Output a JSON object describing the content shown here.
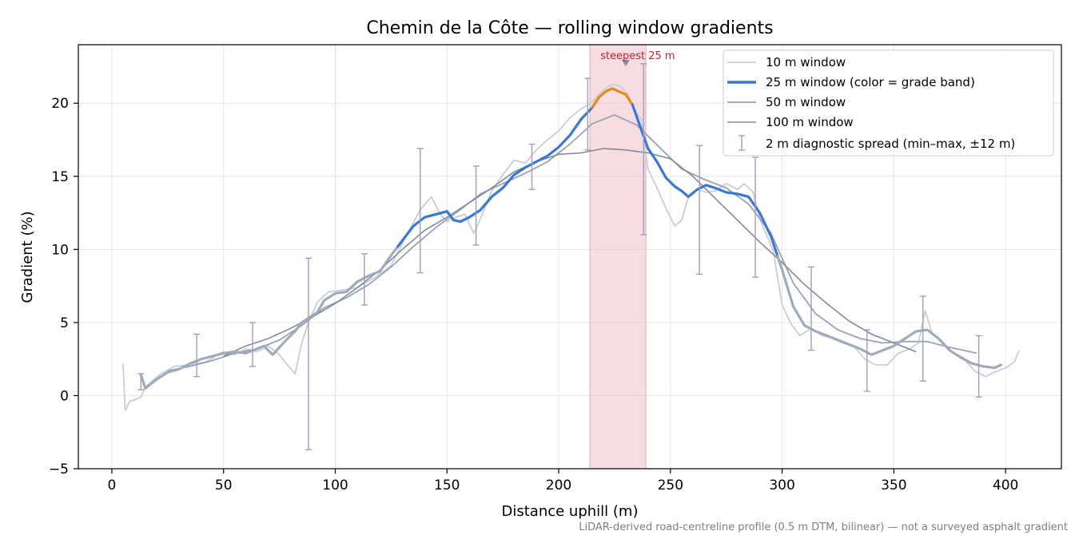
{
  "chart_data": {
    "type": "line",
    "title": "Chemin de la Côte — rolling window gradients",
    "xlabel": "Distance uphill (m)",
    "ylabel": "Gradient (%)",
    "xlim": [
      -15,
      425
    ],
    "ylim": [
      -5,
      24
    ],
    "xticks": [
      0,
      50,
      100,
      150,
      200,
      250,
      300,
      350,
      400
    ],
    "yticks": [
      -5,
      0,
      5,
      10,
      15,
      20
    ],
    "grid": true,
    "legend_position": "top-right",
    "colors": {
      "w10": "#c8ced8",
      "w25": "#3a78d8",
      "w25_steep": "#e08a1a",
      "w25_muted": "#a0abba",
      "w50": "#9aa3b4",
      "w100": "#838a9a",
      "errbar": "#a09cc0",
      "band": "#e8b4bc",
      "annotation": "#cc2233"
    },
    "series": [
      {
        "name": "10 m window",
        "x": [
          5,
          6,
          8,
          10,
          13,
          15,
          18,
          22,
          28,
          35,
          42,
          50,
          55,
          60,
          65,
          70,
          75,
          78,
          82,
          85,
          88,
          92,
          97,
          102,
          110,
          118,
          125,
          132,
          138,
          143,
          147,
          150,
          154,
          158,
          162,
          165,
          170,
          175,
          180,
          185,
          190,
          195,
          200,
          205,
          210,
          215,
          220,
          223,
          225,
          228,
          231,
          234,
          237,
          240,
          244,
          248,
          252,
          255,
          258,
          262,
          266,
          270,
          275,
          280,
          283,
          287,
          290,
          293,
          296,
          300,
          304,
          308,
          313,
          318,
          322,
          327,
          332,
          337,
          342,
          347,
          352,
          357,
          361,
          364,
          367,
          372,
          376,
          381,
          386,
          391,
          395,
          400,
          404,
          406
        ],
        "y": [
          2.2,
          -1.0,
          -0.4,
          -0.3,
          -0.1,
          0.6,
          1.0,
          1.5,
          2.0,
          2.1,
          2.3,
          3.0,
          2.8,
          3.2,
          3.0,
          3.4,
          2.8,
          2.2,
          1.5,
          3.6,
          5.0,
          6.4,
          7.1,
          7.2,
          7.4,
          8.1,
          8.9,
          11.0,
          12.7,
          13.6,
          12.4,
          11.9,
          12.2,
          12.4,
          11.1,
          12.1,
          14.0,
          15.1,
          16.1,
          15.9,
          16.8,
          17.5,
          18.1,
          19.0,
          19.6,
          20.1,
          20.9,
          21.2,
          21.3,
          21.1,
          20.6,
          19.5,
          18.9,
          15.5,
          14.2,
          12.8,
          11.6,
          12.0,
          13.6,
          14.1,
          13.9,
          14.0,
          14.5,
          14.1,
          14.5,
          13.9,
          12.1,
          11.0,
          9.9,
          6.2,
          4.9,
          4.1,
          4.6,
          4.1,
          4.0,
          3.6,
          3.4,
          2.5,
          2.1,
          2.1,
          2.9,
          3.2,
          3.6,
          5.8,
          4.3,
          3.6,
          3.0,
          2.6,
          1.7,
          1.3,
          1.6,
          1.9,
          2.3,
          3.1
        ]
      },
      {
        "name": "25 m window (color = grade band)",
        "x": [
          13,
          15,
          20,
          25,
          30,
          35,
          40,
          45,
          50,
          55,
          60,
          65,
          68,
          72,
          75,
          78,
          82,
          85,
          88,
          92,
          95,
          100,
          105,
          110,
          115,
          120,
          125,
          130,
          135,
          140,
          145,
          150,
          153,
          156,
          160,
          165,
          170,
          175,
          180,
          185,
          190,
          195,
          200,
          205,
          210,
          215,
          218,
          221,
          224,
          227,
          230,
          233,
          236,
          240,
          244,
          248,
          252,
          255,
          258,
          262,
          266,
          270,
          275,
          280,
          285,
          290,
          295,
          300,
          305,
          310,
          315,
          320,
          325,
          330,
          335,
          340,
          345,
          350,
          355,
          360,
          365,
          370,
          375,
          380,
          385,
          390,
          395,
          398
        ],
        "y": [
          1.4,
          0.5,
          1.1,
          1.6,
          1.8,
          2.2,
          2.5,
          2.7,
          2.9,
          3.0,
          2.9,
          3.2,
          3.4,
          2.8,
          3.3,
          3.8,
          4.4,
          5.0,
          5.3,
          5.7,
          6.5,
          7.0,
          7.1,
          7.8,
          8.2,
          8.5,
          9.6,
          10.6,
          11.6,
          12.2,
          12.4,
          12.6,
          12.0,
          11.9,
          12.2,
          12.7,
          13.6,
          14.2,
          15.1,
          15.6,
          16.0,
          16.4,
          17.0,
          17.8,
          18.9,
          19.7,
          20.4,
          20.8,
          21.0,
          20.8,
          20.6,
          19.9,
          18.6,
          16.9,
          16.0,
          14.9,
          14.3,
          14.0,
          13.6,
          14.1,
          14.4,
          14.2,
          13.9,
          13.8,
          13.6,
          12.5,
          10.9,
          8.6,
          6.1,
          4.8,
          4.4,
          4.1,
          3.8,
          3.5,
          3.2,
          2.8,
          3.1,
          3.4,
          3.9,
          4.4,
          4.5,
          3.9,
          3.1,
          2.6,
          2.2,
          2.0,
          1.9,
          2.1
        ],
        "color_segments": [
          {
            "x_from": 13,
            "x_to": 128,
            "band": "muted"
          },
          {
            "x_from": 128,
            "x_to": 215,
            "band": "normal"
          },
          {
            "x_from": 215,
            "x_to": 233,
            "band": "steep"
          },
          {
            "x_from": 233,
            "x_to": 298,
            "band": "normal"
          },
          {
            "x_from": 298,
            "x_to": 398,
            "band": "muted"
          }
        ]
      },
      {
        "name": "50 m window",
        "x": [
          25,
          35,
          45,
          55,
          65,
          75,
          85,
          95,
          105,
          115,
          125,
          135,
          145,
          155,
          165,
          175,
          185,
          195,
          205,
          215,
          225,
          235,
          245,
          255,
          265,
          275,
          285,
          295,
          305,
          315,
          325,
          335,
          345,
          355,
          365,
          375,
          387
        ],
        "y": [
          1.7,
          2.0,
          2.4,
          2.9,
          3.2,
          3.8,
          4.8,
          6.0,
          6.7,
          7.6,
          8.8,
          10.2,
          11.5,
          12.6,
          13.8,
          14.5,
          15.2,
          16.0,
          17.2,
          18.6,
          19.2,
          18.5,
          17.0,
          15.5,
          14.8,
          14.2,
          13.1,
          11.1,
          7.7,
          5.6,
          4.5,
          3.9,
          3.6,
          3.7,
          3.7,
          3.3,
          2.9
        ]
      },
      {
        "name": "100 m window",
        "x": [
          50,
          60,
          70,
          80,
          90,
          100,
          110,
          120,
          130,
          140,
          150,
          160,
          170,
          180,
          190,
          200,
          210,
          220,
          230,
          240,
          250,
          260,
          270,
          280,
          290,
          300,
          310,
          320,
          330,
          340,
          350,
          360
        ],
        "y": [
          2.7,
          3.4,
          3.9,
          4.6,
          5.4,
          6.3,
          7.4,
          8.6,
          10.0,
          11.3,
          12.2,
          13.2,
          14.2,
          15.3,
          16.0,
          16.5,
          16.6,
          16.9,
          16.8,
          16.6,
          16.2,
          15.0,
          13.5,
          12.0,
          10.5,
          9.1,
          7.6,
          6.3,
          5.1,
          4.2,
          3.6,
          3.0
        ]
      },
      {
        "name": "2 m diagnostic spread (min–max, ±12 m)",
        "type": "errorbar",
        "x": [
          13,
          38,
          63,
          88,
          113,
          138,
          163,
          188,
          213,
          238,
          263,
          288,
          313,
          338,
          363,
          388
        ],
        "min": [
          0.4,
          1.3,
          2.0,
          -3.7,
          6.2,
          8.4,
          10.3,
          14.1,
          16.8,
          11.0,
          8.3,
          8.1,
          3.1,
          0.3,
          1.0,
          -0.1
        ],
        "max": [
          1.5,
          4.2,
          5.0,
          9.4,
          9.7,
          16.9,
          15.7,
          17.2,
          21.7,
          22.7,
          17.1,
          16.3,
          8.8,
          4.5,
          6.8,
          4.1
        ]
      }
    ],
    "highlight_band": {
      "x_from": 214,
      "x_to": 239
    },
    "annotation": {
      "text": "steepest 25 m",
      "x": 230,
      "y": 22.8
    }
  },
  "footnote": "LiDAR-derived road-centreline profile (0.5 m DTM, bilinear) — not a surveyed asphalt gradient"
}
